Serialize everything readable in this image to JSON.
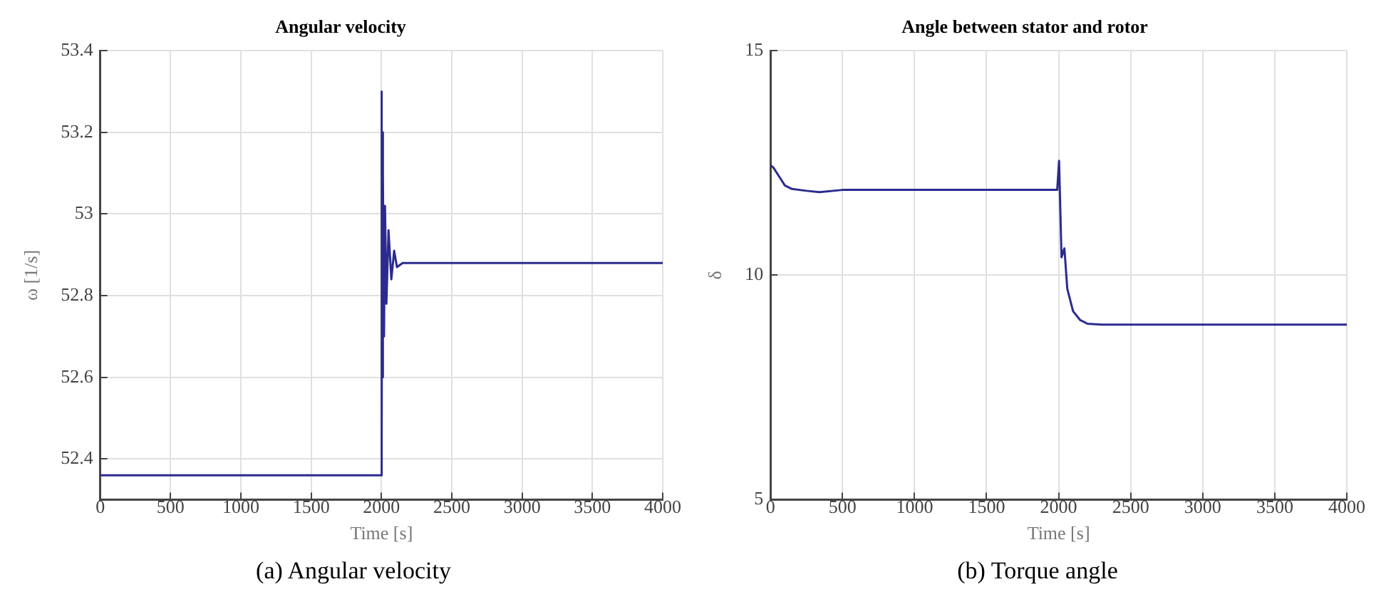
{
  "chart_data": [
    {
      "type": "line",
      "title": "Angular velocity",
      "xlabel": "Time [s]",
      "ylabel": "ω [1/s]",
      "annotations": [
        "(a) Angular velocity"
      ],
      "xlim": [
        0,
        4000
      ],
      "xticks": [
        0,
        500,
        1000,
        1500,
        2000,
        2500,
        3000,
        3500,
        4000
      ],
      "ylim": [
        52.3,
        53.4
      ],
      "yticks": [
        52.4,
        52.6,
        52.8,
        53,
        53.2,
        53.4
      ],
      "grid": true,
      "marker": "none",
      "line_style": "solid",
      "series": [
        {
          "color": "#2b2b8f",
          "x": [
            0,
            1000,
            1998,
            2000,
            2001,
            2003,
            2005,
            2008,
            2012,
            2018,
            2025,
            2035,
            2050,
            2070,
            2090,
            2110,
            2150,
            3000,
            4000
          ],
          "values": [
            52.36,
            52.36,
            52.36,
            52.36,
            53.3,
            52.45,
            53.2,
            52.6,
            53.1,
            52.7,
            53.02,
            52.78,
            52.96,
            52.84,
            52.91,
            52.87,
            52.88,
            52.88,
            52.88
          ]
        }
      ]
    },
    {
      "type": "line",
      "title": "Angle between stator and rotor",
      "xlabel": "Time [s]",
      "ylabel": "δ",
      "annotations": [
        "(b) Torque angle"
      ],
      "xlim": [
        0,
        4000
      ],
      "xticks": [
        0,
        500,
        1000,
        1500,
        2000,
        2500,
        3000,
        3500,
        4000
      ],
      "ylim": [
        5,
        15
      ],
      "yticks": [
        5,
        10,
        15
      ],
      "grid": true,
      "marker": "none",
      "line_style": "solid",
      "series": [
        {
          "color": "#2b2b8f",
          "x": [
            0,
            20,
            60,
            100,
            150,
            250,
            340,
            500,
            1000,
            1990,
            2003,
            2020,
            2040,
            2060,
            2100,
            2150,
            2200,
            2300,
            3000,
            4000
          ],
          "values": [
            12.45,
            12.4,
            12.2,
            12.0,
            11.92,
            11.88,
            11.85,
            11.9,
            11.9,
            11.9,
            12.55,
            10.4,
            10.6,
            9.7,
            9.2,
            9.0,
            8.92,
            8.9,
            8.9,
            8.9
          ]
        }
      ]
    }
  ]
}
